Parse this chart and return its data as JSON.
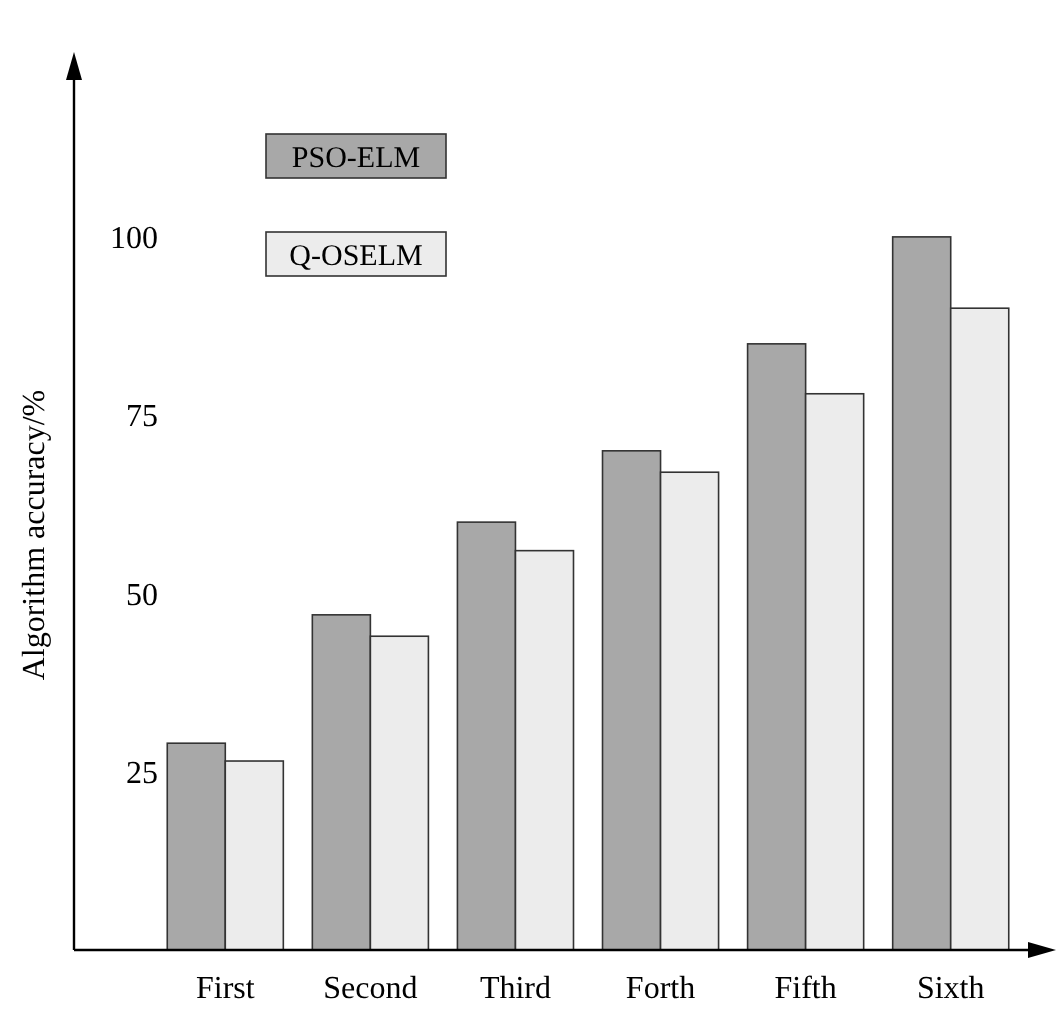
{
  "chart_data": {
    "type": "bar",
    "ylabel": "Algorithm accuracy/%",
    "categories": [
      "First",
      "Second",
      "Third",
      "Forth",
      "Fifth",
      "Sixth"
    ],
    "series": [
      {
        "name": "PSO-ELM",
        "color": "#a8a8a8",
        "values": [
          29,
          47,
          60,
          70,
          85,
          100
        ]
      },
      {
        "name": "Q-OSELM",
        "color": "#ececec",
        "values": [
          26.5,
          44,
          56,
          67,
          78,
          90
        ]
      }
    ],
    "ylim": [
      0,
      122
    ],
    "yticks": [
      25,
      50,
      75,
      100
    ],
    "grid": false,
    "legend": "top left"
  }
}
